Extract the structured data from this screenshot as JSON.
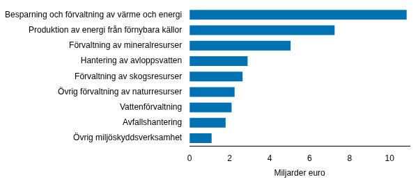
{
  "chart_data": {
    "type": "bar",
    "orientation": "horizontal",
    "categories": [
      "Besparning och förvaltning av värme och energi",
      "Produktion av energi från förnybara källor",
      "Förvaltning av mineralresurser",
      "Hantering av avloppsvatten",
      "Förvaltning av skogsresurser",
      "Övrig förvaltning av naturresurser",
      "Vattenförvaltning",
      "Avfallshantering",
      "Övrig miljöskyddsverksamhet"
    ],
    "values": [
      10.85,
      7.25,
      5.05,
      2.9,
      2.65,
      2.25,
      2.1,
      1.8,
      1.1
    ],
    "color": "#0072b2",
    "x_label": "Miljarder euro",
    "xlim": [
      0,
      11
    ],
    "xticks": [
      0,
      2,
      4,
      6,
      8,
      10
    ],
    "grid": false
  }
}
